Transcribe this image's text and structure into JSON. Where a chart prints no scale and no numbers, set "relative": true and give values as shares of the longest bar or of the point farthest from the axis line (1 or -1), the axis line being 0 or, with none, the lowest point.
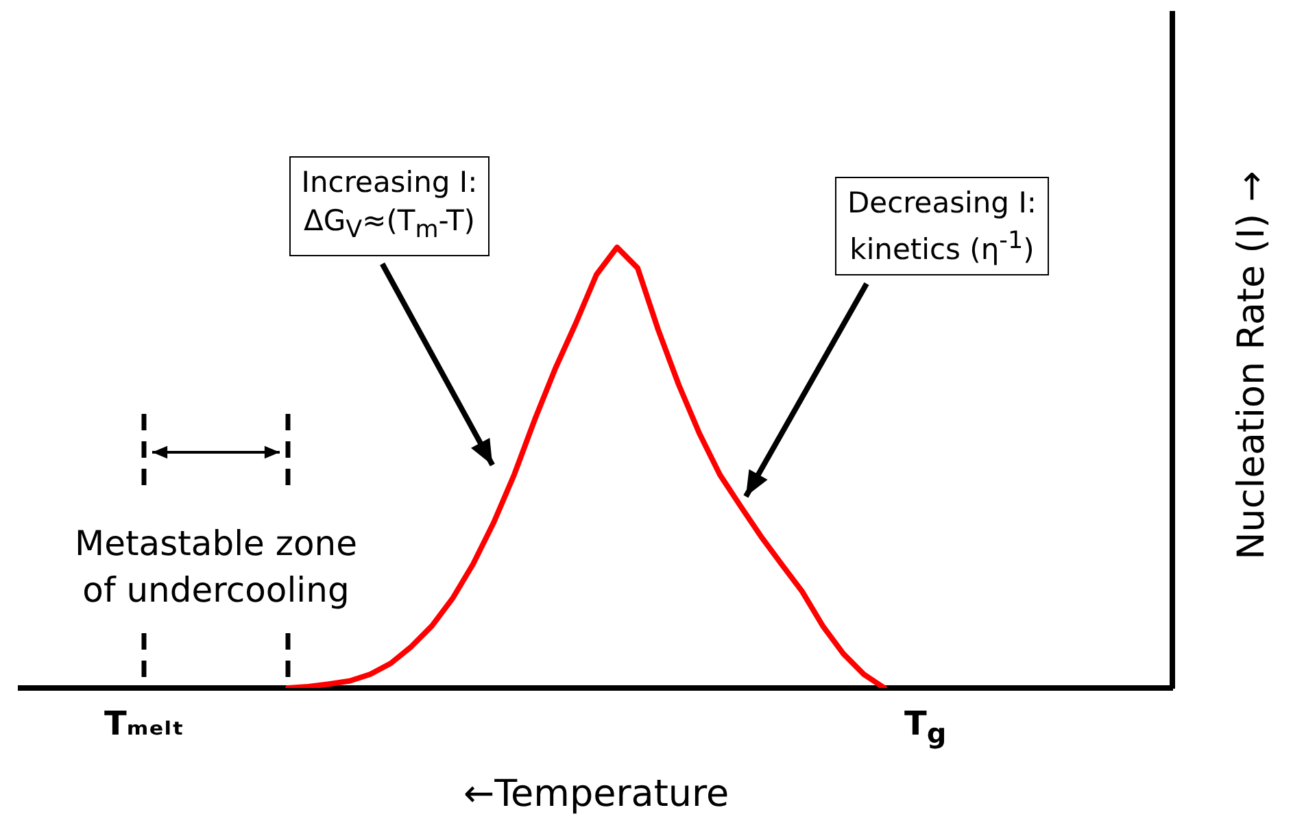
{
  "chart_data": {
    "type": "line",
    "relative": true,
    "xlabel": "←Temperature",
    "ylabel": "Nucleation Rate (I) →",
    "color": "#ff0000",
    "categories": [
      null,
      null,
      null,
      null,
      null,
      null,
      "Tₘₑₗₜ",
      null,
      null,
      null,
      null,
      null,
      null,
      null,
      null,
      null,
      null,
      null,
      null,
      null,
      null,
      null,
      null,
      null,
      null,
      null,
      null,
      null,
      null,
      null,
      null,
      null,
      null,
      null,
      null,
      null,
      null,
      null,
      null,
      null,
      null,
      null,
      null,
      null,
      "T$_{g}$",
      null,
      null,
      null,
      null,
      null,
      null,
      null,
      null,
      null,
      null,
      null,
      null
    ],
    "values": [
      null,
      null,
      null,
      null,
      null,
      null,
      null,
      null,
      null,
      null,
      null,
      null,
      null,
      0,
      0.003,
      0.009,
      0.016,
      0.031,
      0.056,
      0.094,
      0.141,
      0.203,
      0.281,
      0.375,
      0.484,
      0.609,
      0.725,
      0.828,
      0.938,
      1,
      0.953,
      0.813,
      0.688,
      0.578,
      0.484,
      0.413,
      0.344,
      0.281,
      0.219,
      0.141,
      0.078,
      0.031,
      0,
      null,
      null,
      null,
      null,
      null,
      null,
      null,
      null,
      null,
      null,
      null,
      null,
      null,
      null
    ],
    "annotations": [
      "Metastable zone\nof undercooling",
      "Increasing I:\nΔG$_{V}$≈(T$_{m}$-T)",
      "Decreasing I:\nkinetics (η$^{-1}$)"
    ]
  }
}
